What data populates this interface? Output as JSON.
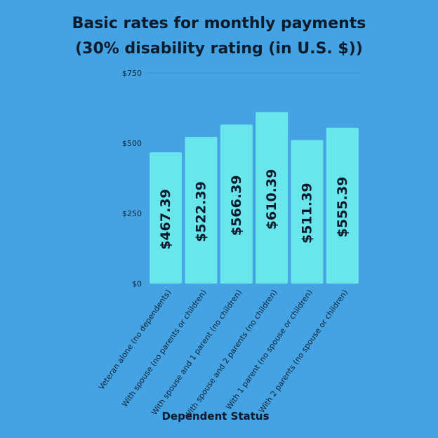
{
  "chart_data": {
    "type": "bar",
    "title_lines": [
      "Basic rates for monthly payments",
      "(30% disability rating (in U.S. $))"
    ],
    "xlabel": "Dependent Status",
    "ylabel": "",
    "categories": [
      "Veteran alone (no dependents)",
      "With spouse (no parents or children)",
      "With spouse and 1 parent (no children)",
      "With spouse and 2 parents (no children)",
      "With 1 parent (no spouse or children)",
      "With 2 parents (no spouse or children)"
    ],
    "values": [
      467.39,
      522.39,
      566.39,
      610.39,
      511.39,
      555.39
    ],
    "data_labels": [
      "$467.39",
      "$522.39",
      "$566.39",
      "$610.39",
      "$511.39",
      "$555.39"
    ],
    "ylim": [
      0,
      750
    ],
    "y_ticks": [
      0,
      250,
      500,
      750
    ],
    "y_tick_labels": [
      "$0",
      "$250",
      "$500",
      "$750"
    ],
    "grid": "top gridline only",
    "legend": "none",
    "colors": {
      "background": "#45a3e3",
      "bar": "#69e6ec",
      "text": "#0d1b2a",
      "gridline": "#3a8fd0"
    }
  }
}
